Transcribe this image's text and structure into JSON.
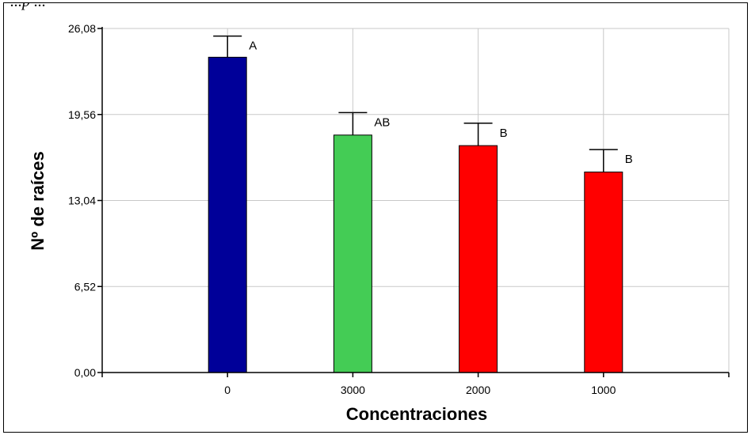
{
  "caption": "...p ...",
  "chart_data": {
    "type": "bar",
    "title": "",
    "xlabel": "Concentraciones",
    "ylabel": "Nº de raíces",
    "categories": [
      "0",
      "3000",
      "2000",
      "1000"
    ],
    "values": [
      23.9,
      18.0,
      17.2,
      15.2
    ],
    "error_upper": [
      25.5,
      19.7,
      18.9,
      16.9
    ],
    "labels": [
      "A",
      "AB",
      "B",
      "B"
    ],
    "colors": [
      "#000099",
      "#44cc55",
      "#ff0000",
      "#ff0000"
    ],
    "ylim": [
      0,
      26.08
    ],
    "yticks": [
      "0,00",
      "6,52",
      "13,04",
      "19,56",
      "26,08"
    ],
    "ytick_values": [
      0,
      6.52,
      13.04,
      19.56,
      26.08
    ],
    "grid": true,
    "legend": "none"
  }
}
